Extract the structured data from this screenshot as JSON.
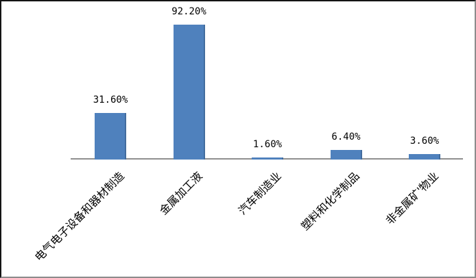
{
  "chart_data": {
    "type": "bar",
    "categories": [
      "电气电子设备和器材制造",
      "金属加工液",
      "汽车制造业",
      "塑料和化学制品",
      "非金属矿'物业"
    ],
    "values": [
      31.6,
      92.2,
      1.6,
      6.4,
      3.6
    ],
    "value_labels": [
      "31.60%",
      "92.20%",
      "1.60%",
      "6.40%",
      "3.60%"
    ],
    "title": "",
    "xlabel": "",
    "ylabel": "",
    "ylim": [
      0,
      100
    ],
    "grid": false,
    "legend": false,
    "bar_color": "#4F81BD",
    "axis_color": "#8f8f8f",
    "label_color": "#000000"
  }
}
